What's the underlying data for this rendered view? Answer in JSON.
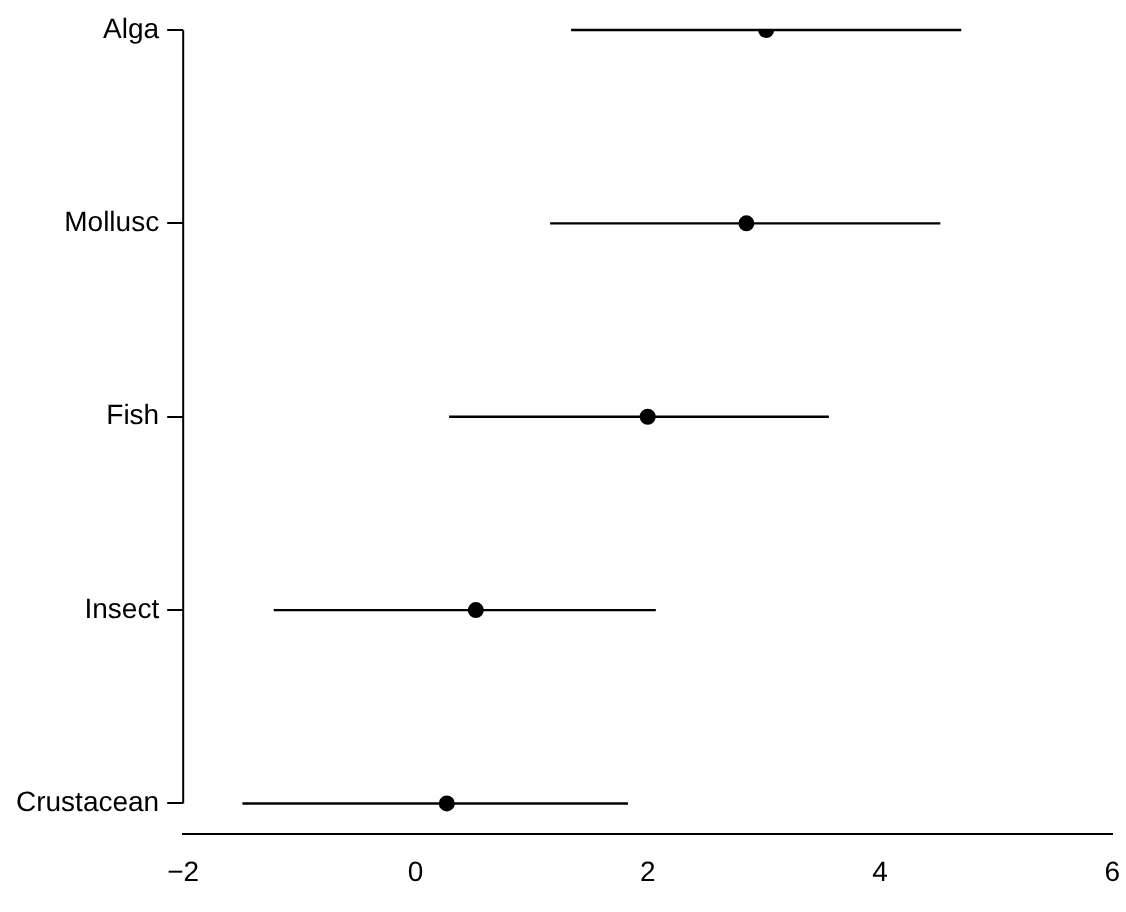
{
  "chart_data": {
    "type": "scatter",
    "orientation": "horizontal",
    "categories": [
      "Alga",
      "Mollusc",
      "Fish",
      "Insect",
      "Crustacean"
    ],
    "values": [
      3.02,
      2.85,
      2.0,
      0.52,
      0.27
    ],
    "errors": [
      [
        1.34,
        4.7
      ],
      [
        1.16,
        4.52
      ],
      [
        0.29,
        3.56
      ],
      [
        -1.22,
        2.07
      ],
      [
        -1.49,
        1.83
      ]
    ],
    "color": "#000000",
    "marker": "circle",
    "xlim": [
      -2,
      6
    ],
    "xticks": [
      -2,
      0,
      2,
      4,
      6
    ]
  }
}
